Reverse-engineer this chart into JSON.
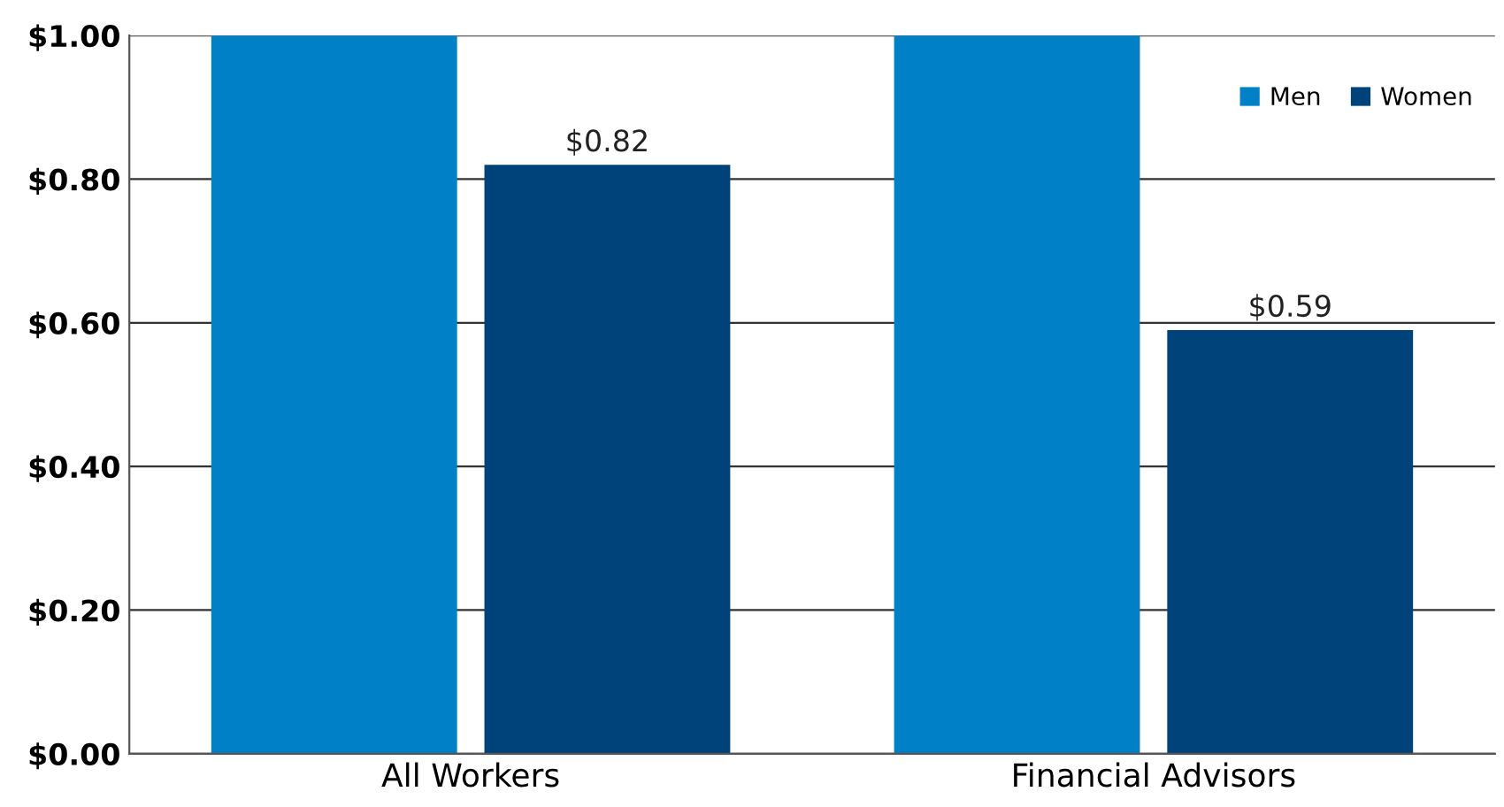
{
  "chart_data": {
    "type": "bar",
    "categories": [
      "All Workers",
      "Financial Advisors"
    ],
    "series": [
      {
        "name": "Men",
        "color": "#0080c6",
        "values": [
          1.0,
          1.0
        ],
        "value_labels": [
          null,
          null
        ]
      },
      {
        "name": "Women",
        "color": "#00437a",
        "values": [
          0.82,
          0.59
        ],
        "value_labels": [
          "$0.82",
          "$0.59"
        ]
      }
    ],
    "ylim": [
      0,
      1.0
    ],
    "yticks": [
      {
        "value": 0,
        "label": "$0.00"
      },
      {
        "value": 0.2,
        "label": "$0.20"
      },
      {
        "value": 0.4,
        "label": "$0.40"
      },
      {
        "value": 0.6,
        "label": "$0.60"
      },
      {
        "value": 0.8,
        "label": "$0.80"
      },
      {
        "value": 1.0,
        "label": "$1.00"
      }
    ],
    "grid": "y",
    "legend": "top right"
  }
}
